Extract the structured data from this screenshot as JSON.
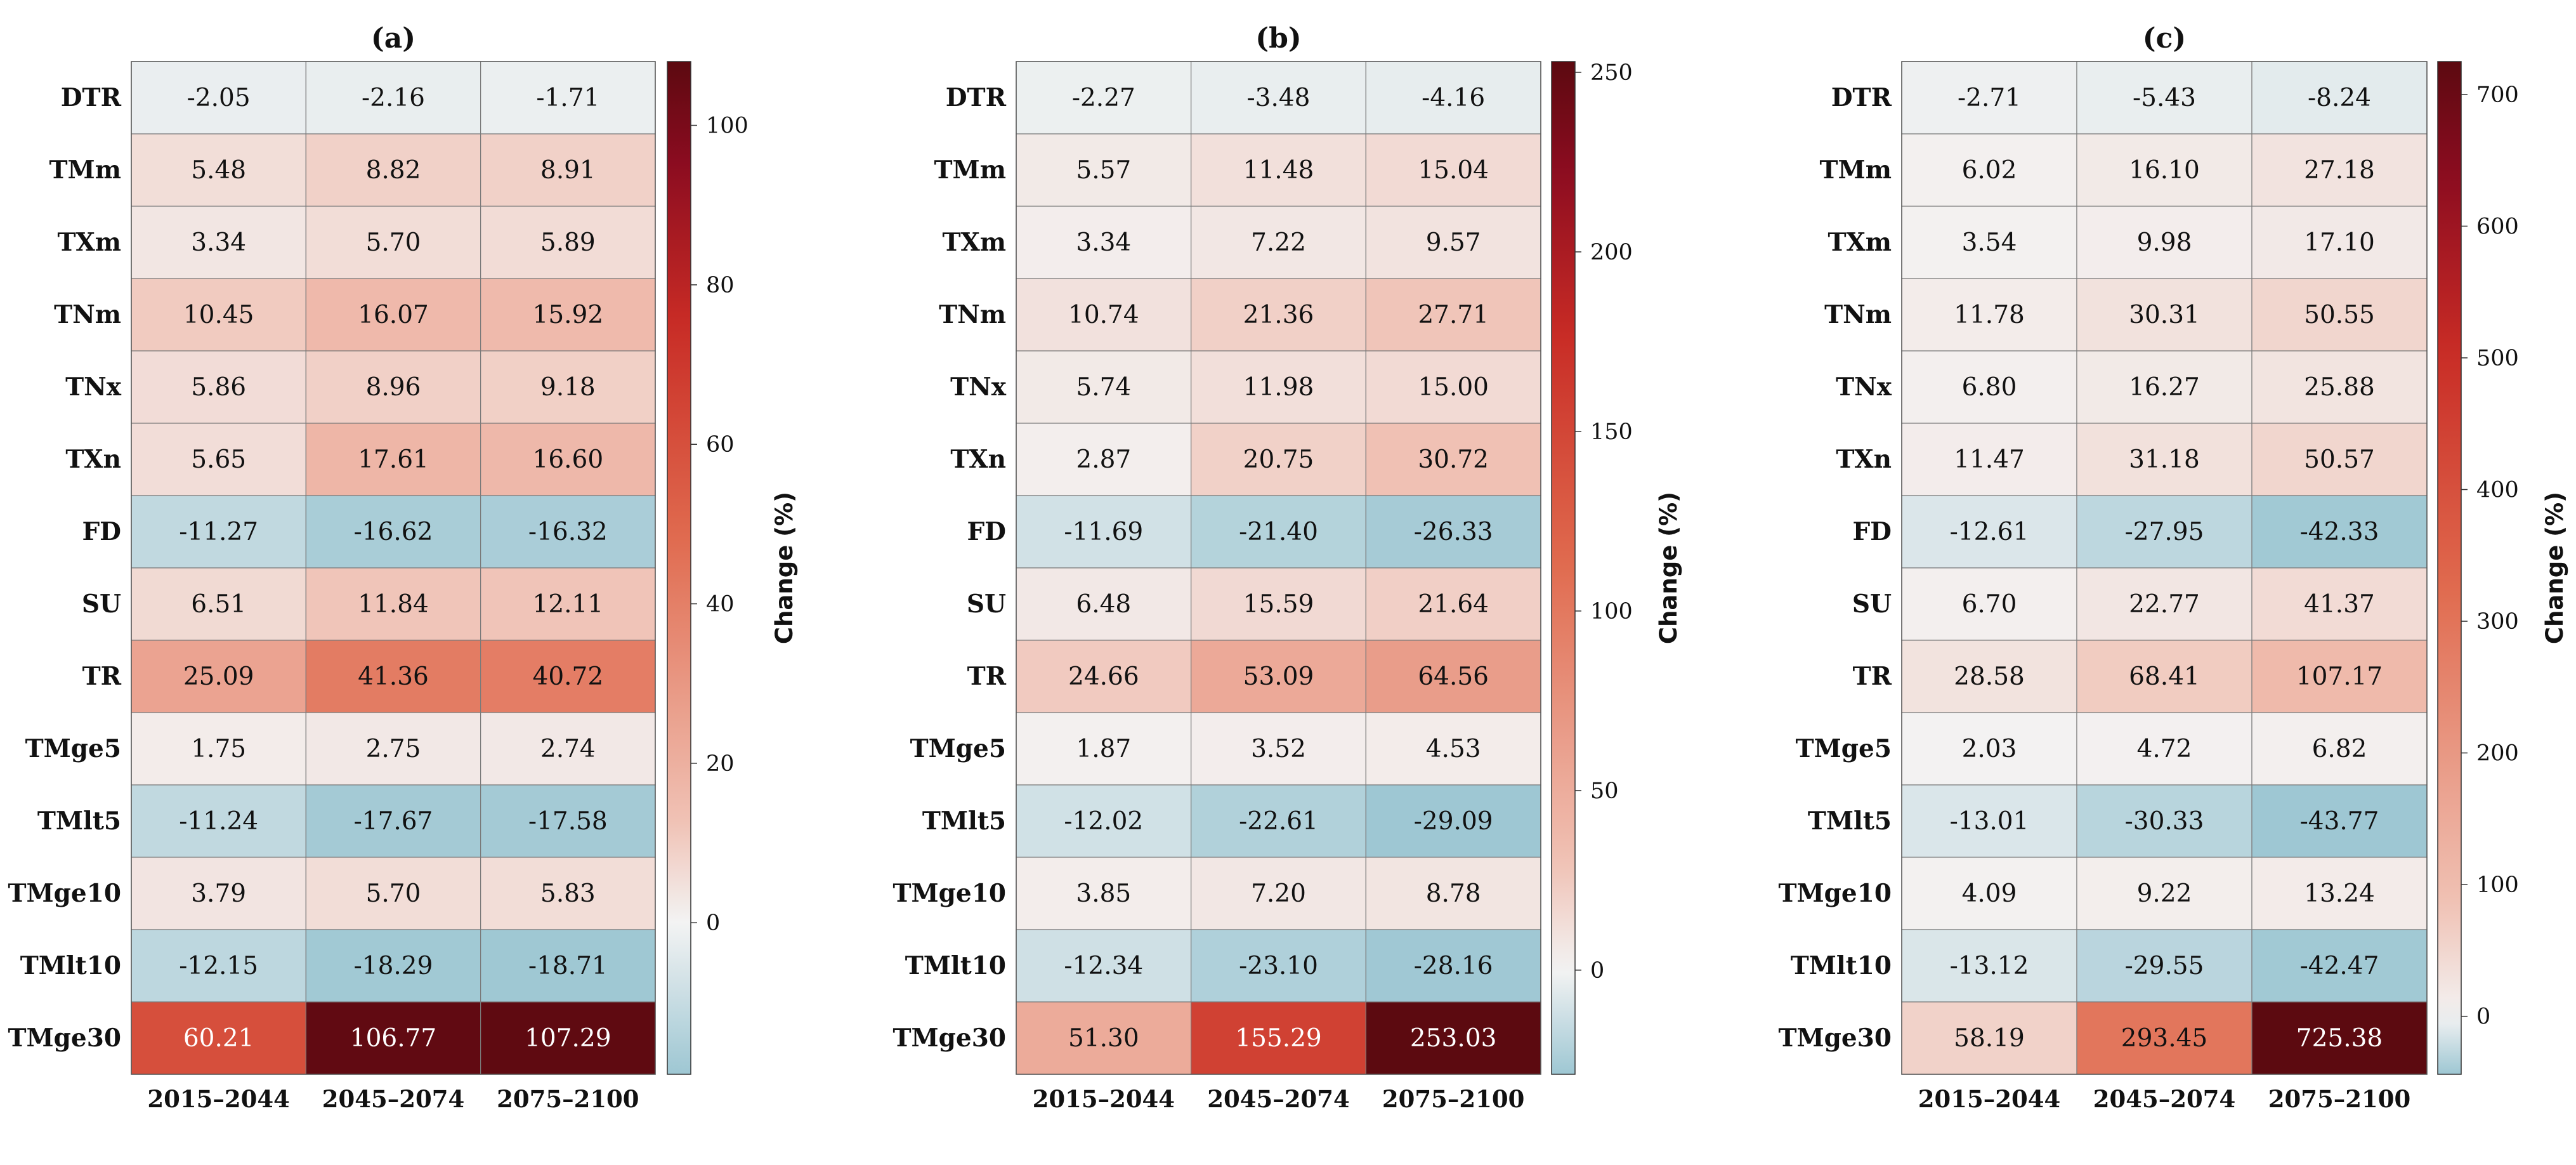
{
  "chart_data": [
    {
      "type": "heatmap",
      "title": "(a)",
      "rows": [
        "DTR",
        "TMm",
        "TXm",
        "TNm",
        "TNx",
        "TXn",
        "FD",
        "SU",
        "TR",
        "TMge5",
        "TMlt5",
        "TMge10",
        "TMlt10",
        "TMge30"
      ],
      "columns": [
        "2015–2044",
        "2045–2074",
        "2075–2100"
      ],
      "values": [
        [
          -2.05,
          -2.16,
          -1.71
        ],
        [
          5.48,
          8.82,
          8.91
        ],
        [
          3.34,
          5.7,
          5.89
        ],
        [
          10.45,
          16.07,
          15.92
        ],
        [
          5.86,
          8.96,
          9.18
        ],
        [
          5.65,
          17.61,
          16.6
        ],
        [
          -11.27,
          -16.62,
          -16.32
        ],
        [
          6.51,
          11.84,
          12.11
        ],
        [
          25.09,
          41.36,
          40.72
        ],
        [
          1.75,
          2.75,
          2.74
        ],
        [
          -11.24,
          -17.67,
          -17.58
        ],
        [
          3.79,
          5.7,
          5.83
        ],
        [
          -12.15,
          -18.29,
          -18.71
        ],
        [
          60.21,
          106.77,
          107.29
        ]
      ],
      "labels": [
        [
          "-2.05",
          "-2.16",
          "-1.71"
        ],
        [
          "5.48",
          "8.82",
          "8.91"
        ],
        [
          "3.34",
          "5.70",
          "5.89"
        ],
        [
          "10.45",
          "16.07",
          "15.92"
        ],
        [
          "5.86",
          "8.96",
          "9.18"
        ],
        [
          "5.65",
          "17.61",
          "16.60"
        ],
        [
          "-11.27",
          "-16.62",
          "-16.32"
        ],
        [
          "6.51",
          "11.84",
          "12.11"
        ],
        [
          "25.09",
          "41.36",
          "40.72"
        ],
        [
          "1.75",
          "2.75",
          "2.74"
        ],
        [
          "-11.24",
          "-17.67",
          "-17.58"
        ],
        [
          "3.79",
          "5.70",
          "5.83"
        ],
        [
          "-12.15",
          "-18.29",
          "-18.71"
        ],
        [
          "60.21",
          "106.77",
          "107.29"
        ]
      ],
      "colorbar": {
        "label": "Change (%)",
        "min": -19,
        "max": 108,
        "ticks": [
          "0",
          "20",
          "40",
          "60",
          "80",
          "100"
        ]
      }
    },
    {
      "type": "heatmap",
      "title": "(b)",
      "rows": [
        "DTR",
        "TMm",
        "TXm",
        "TNm",
        "TNx",
        "TXn",
        "FD",
        "SU",
        "TR",
        "TMge5",
        "TMlt5",
        "TMge10",
        "TMlt10",
        "TMge30"
      ],
      "columns": [
        "2015–2044",
        "2045–2074",
        "2075–2100"
      ],
      "values": [
        [
          -2.27,
          -3.48,
          -4.16
        ],
        [
          5.57,
          11.48,
          15.04
        ],
        [
          3.34,
          7.22,
          9.57
        ],
        [
          10.74,
          21.36,
          27.71
        ],
        [
          5.74,
          11.98,
          15.0
        ],
        [
          2.87,
          20.75,
          30.72
        ],
        [
          -11.69,
          -21.4,
          -26.33
        ],
        [
          6.48,
          15.59,
          21.64
        ],
        [
          24.66,
          53.09,
          64.56
        ],
        [
          1.87,
          3.52,
          4.53
        ],
        [
          -12.02,
          -22.61,
          -29.09
        ],
        [
          3.85,
          7.2,
          8.78
        ],
        [
          -12.34,
          -23.1,
          -28.16
        ],
        [
          51.3,
          155.29,
          253.03
        ]
      ],
      "labels": [
        [
          "-2.27",
          "-3.48",
          "-4.16"
        ],
        [
          "5.57",
          "11.48",
          "15.04"
        ],
        [
          "3.34",
          "7.22",
          "9.57"
        ],
        [
          "10.74",
          "21.36",
          "27.71"
        ],
        [
          "5.74",
          "11.98",
          "15.00"
        ],
        [
          "2.87",
          "20.75",
          "30.72"
        ],
        [
          "-11.69",
          "-21.40",
          "-26.33"
        ],
        [
          "6.48",
          "15.59",
          "21.64"
        ],
        [
          "24.66",
          "53.09",
          "64.56"
        ],
        [
          "1.87",
          "3.52",
          "4.53"
        ],
        [
          "-12.02",
          "-22.61",
          "-29.09"
        ],
        [
          "3.85",
          "7.20",
          "8.78"
        ],
        [
          "-12.34",
          "-23.10",
          "-28.16"
        ],
        [
          "51.30",
          "155.29",
          "253.03"
        ]
      ],
      "colorbar": {
        "label": "Change (%)",
        "min": -29,
        "max": 253,
        "ticks": [
          "0",
          "50",
          "100",
          "150",
          "200",
          "250"
        ]
      }
    },
    {
      "type": "heatmap",
      "title": "(c)",
      "rows": [
        "DTR",
        "TMm",
        "TXm",
        "TNm",
        "TNx",
        "TXn",
        "FD",
        "SU",
        "TR",
        "TMge5",
        "TMlt5",
        "TMge10",
        "TMlt10",
        "TMge30"
      ],
      "columns": [
        "2015–2044",
        "2045–2074",
        "2075–2100"
      ],
      "values": [
        [
          -2.71,
          -5.43,
          -8.24
        ],
        [
          6.02,
          16.1,
          27.18
        ],
        [
          3.54,
          9.98,
          17.1
        ],
        [
          11.78,
          30.31,
          50.55
        ],
        [
          6.8,
          16.27,
          25.88
        ],
        [
          11.47,
          31.18,
          50.57
        ],
        [
          -12.61,
          -27.95,
          -42.33
        ],
        [
          6.7,
          22.77,
          41.37
        ],
        [
          28.58,
          68.41,
          107.17
        ],
        [
          2.03,
          4.72,
          6.82
        ],
        [
          -13.01,
          -30.33,
          -43.77
        ],
        [
          4.09,
          9.22,
          13.24
        ],
        [
          -13.12,
          -29.55,
          -42.47
        ],
        [
          58.19,
          293.45,
          725.38
        ]
      ],
      "labels": [
        [
          "-2.71",
          "-5.43",
          "-8.24"
        ],
        [
          "6.02",
          "16.10",
          "27.18"
        ],
        [
          "3.54",
          "9.98",
          "17.10"
        ],
        [
          "11.78",
          "30.31",
          "50.55"
        ],
        [
          "6.80",
          "16.27",
          "25.88"
        ],
        [
          "11.47",
          "31.18",
          "50.57"
        ],
        [
          "-12.61",
          "-27.95",
          "-42.33"
        ],
        [
          "6.70",
          "22.77",
          "41.37"
        ],
        [
          "28.58",
          "68.41",
          "107.17"
        ],
        [
          "2.03",
          "4.72",
          "6.82"
        ],
        [
          "-13.01",
          "-30.33",
          "-43.77"
        ],
        [
          "4.09",
          "9.22",
          "13.24"
        ],
        [
          "-13.12",
          "-29.55",
          "-42.47"
        ],
        [
          "58.19",
          "293.45",
          "725.38"
        ]
      ],
      "colorbar": {
        "label": "Change (%)",
        "min": -44,
        "max": 725,
        "ticks": [
          "0",
          "100",
          "200",
          "300",
          "400",
          "500",
          "600",
          "700"
        ]
      }
    }
  ],
  "colors": {
    "negative_end": "#9ec7d3",
    "zero": "#f3f3f3",
    "positive_stops": [
      "#f3f3f3",
      "#f0c1b4",
      "#e06a4e",
      "#c82b25",
      "#8c0c20",
      "#5c0a10"
    ],
    "text_dark": "#111111",
    "text_light": "#ffffff"
  }
}
